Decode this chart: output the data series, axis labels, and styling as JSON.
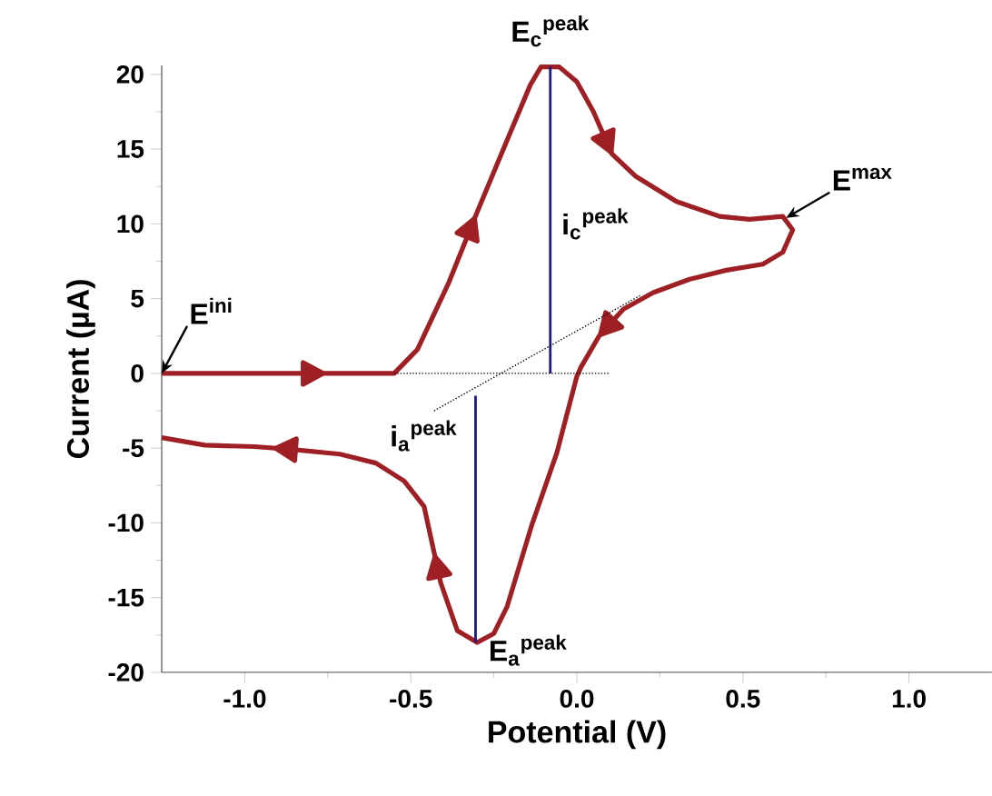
{
  "chart_data": {
    "type": "line",
    "xlabel": "Potential (V)",
    "ylabel": "Current (µA)",
    "xlim": [
      -1.25,
      1.25
    ],
    "ylim": [
      -20,
      20.6
    ],
    "xticks": [
      {
        "value": -1.0,
        "label": "-1.0"
      },
      {
        "value": -0.5,
        "label": "-0.5"
      },
      {
        "value": 0,
        "label": "0.0"
      },
      {
        "value": 0.5,
        "label": "0.5"
      },
      {
        "value": 1.0,
        "label": "1.0"
      }
    ],
    "yticks": [
      -20,
      -15,
      -10,
      -5,
      0,
      5,
      10,
      15,
      20
    ],
    "series": [
      {
        "color": "#9e1f24",
        "x": [
          -1.25,
          -0.55,
          -0.48,
          -0.387,
          -0.3,
          -0.21,
          -0.14,
          -0.108,
          -0.053,
          0,
          0.05,
          0.105,
          0.176,
          0.3,
          0.43,
          0.52,
          0.62,
          0.65,
          0.62,
          0.56,
          0.45,
          0.34,
          0.23,
          0.14,
          0.067,
          0.012,
          0,
          -0.06,
          -0.135,
          -0.21,
          -0.25,
          -0.3,
          -0.36,
          -0.41,
          -0.46,
          -0.52,
          -0.605,
          -0.714,
          -0.85,
          -0.97,
          -1.12,
          -1.25
        ],
        "values": [
          0,
          0,
          1.6,
          6.0,
          10.8,
          15.6,
          19.3,
          20.5,
          20.5,
          19.5,
          17.5,
          14.7,
          13.2,
          11.5,
          10.5,
          10.3,
          10.5,
          9.6,
          8.1,
          7.3,
          6.9,
          6.3,
          5.4,
          4.3,
          2.5,
          0.4,
          -0.2,
          -5.3,
          -10.1,
          -15.6,
          -17.4,
          -18.0,
          -17.2,
          -14.0,
          -8.9,
          -7.2,
          -6.0,
          -5.4,
          -5.1,
          -4.9,
          -4.8,
          -4.3
        ]
      },
      {
        "color": "#1a1a8c",
        "x": [
          -0.08,
          -0.08
        ],
        "values": [
          0,
          20.5
        ]
      },
      {
        "color": "#1a1a8c",
        "x": [
          -0.305,
          -0.305
        ],
        "values": [
          -1.5,
          -18
        ]
      },
      {
        "color": "#000000",
        "line_style": "dotted",
        "x": [
          -0.55,
          0.1
        ],
        "values": [
          0,
          0
        ]
      },
      {
        "color": "#000000",
        "line_style": "dotted",
        "x": [
          -0.43,
          0.19
        ],
        "values": [
          -2.5,
          5.2
        ]
      }
    ],
    "annotations": [
      {
        "text": "E$^{ini}$",
        "x": -1.25,
        "y": 0
      },
      {
        "text": "E$_{c}$$^{peak}$",
        "x": -0.08,
        "y": 20.5
      },
      {
        "text": "E$^{max}$",
        "x": 0.63,
        "y": 10.4
      },
      {
        "text": "i$_{c}$$^{peak}$",
        "x": -0.08,
        "y": 10
      },
      {
        "text": "i$_{a}$$^{peak}$",
        "x": -0.32,
        "y": -2.5
      },
      {
        "text": "E$_{a}$$^{peak}$",
        "x": -0.305,
        "y": -18
      }
    ]
  }
}
